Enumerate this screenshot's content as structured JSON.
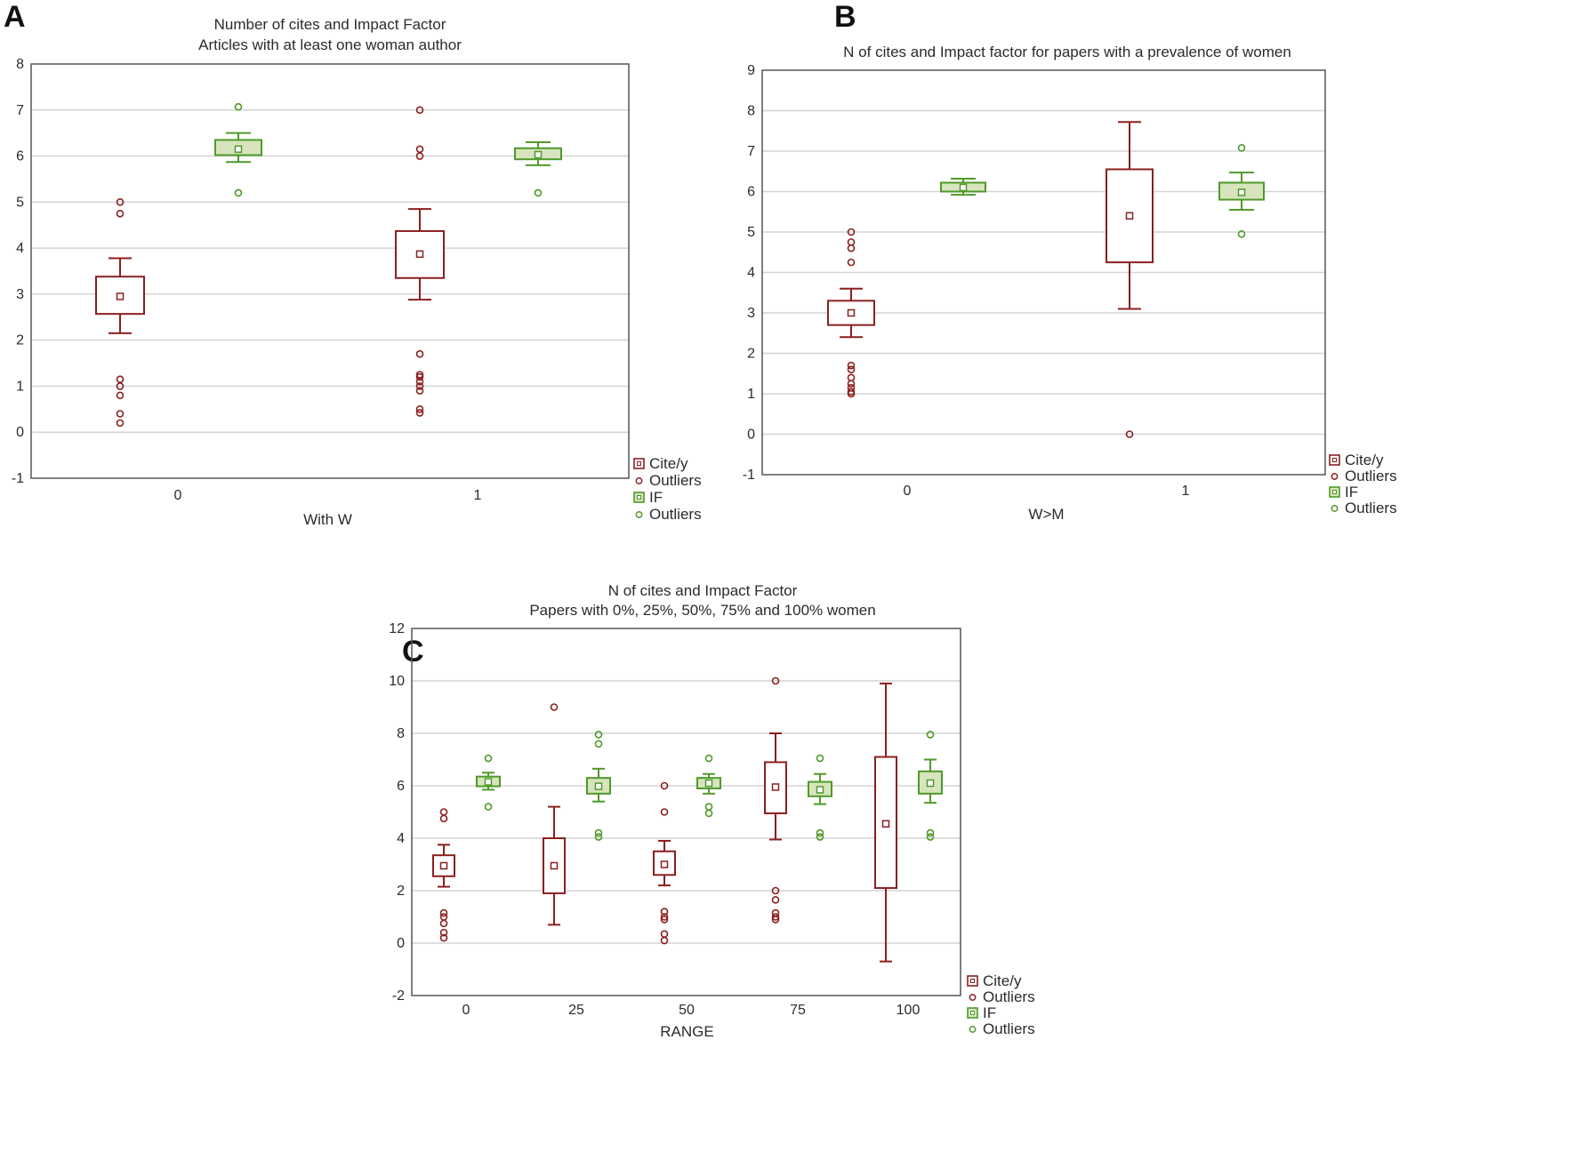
{
  "colors": {
    "cite": "#8b1f1f",
    "if_stroke": "#4f9a2a",
    "if_fill": "#d7e4bd",
    "grid": "#d4d4d4",
    "axis": "#555555"
  },
  "chart_data": [
    {
      "panel": "A",
      "type": "box",
      "title": "Number of cites and Impact Factor",
      "subtitle": "Articles with at least one woman author",
      "xlabel": "With W",
      "categories": [
        "0",
        "1"
      ],
      "ylim": [
        -1,
        8
      ],
      "yticks": [
        -1,
        0,
        1,
        2,
        3,
        4,
        5,
        6,
        7,
        8
      ],
      "grid": true,
      "legend_position": "right",
      "series": [
        {
          "name": "Cite/y",
          "outlier_label": "Outliers",
          "boxes": [
            {
              "category": "0",
              "center": 2.95,
              "box": [
                2.57,
                3.38
              ],
              "whisker": [
                2.15,
                3.78
              ],
              "outliers": [
                5.0,
                4.75,
                1.15,
                1.0,
                0.8,
                0.4,
                0.2
              ]
            },
            {
              "category": "1",
              "center": 3.87,
              "box": [
                3.35,
                4.37
              ],
              "whisker": [
                2.88,
                4.85
              ],
              "outliers": [
                7.0,
                6.15,
                6.0,
                1.7,
                1.25,
                1.2,
                1.1,
                1.0,
                0.9,
                0.5,
                0.42
              ]
            }
          ]
        },
        {
          "name": "IF",
          "outlier_label": "Outliers",
          "boxes": [
            {
              "category": "0",
              "center": 6.15,
              "box": [
                6.02,
                6.35
              ],
              "whisker": [
                5.87,
                6.5
              ],
              "outliers": [
                7.07,
                5.2
              ]
            },
            {
              "category": "1",
              "center": 6.03,
              "box": [
                5.93,
                6.17
              ],
              "whisker": [
                5.8,
                6.3
              ],
              "outliers": [
                5.2
              ]
            }
          ]
        }
      ]
    },
    {
      "panel": "B",
      "type": "box",
      "title": "N of cites and Impact factor  for papers with a prevalence of women",
      "subtitle": "",
      "xlabel": "W>M",
      "categories": [
        "0",
        "1"
      ],
      "ylim": [
        -1,
        9
      ],
      "yticks": [
        -1,
        0,
        1,
        2,
        3,
        4,
        5,
        6,
        7,
        8,
        9
      ],
      "grid": true,
      "legend_position": "right",
      "series": [
        {
          "name": "Cite/y",
          "outlier_label": "Outliers",
          "boxes": [
            {
              "category": "0",
              "center": 3.0,
              "box": [
                2.7,
                3.3
              ],
              "whisker": [
                2.4,
                3.6
              ],
              "outliers": [
                5.0,
                4.75,
                4.6,
                4.25,
                1.7,
                1.6,
                1.4,
                1.25,
                1.15,
                1.05,
                1.0
              ]
            },
            {
              "category": "1",
              "center": 5.4,
              "box": [
                4.25,
                6.55
              ],
              "whisker": [
                3.1,
                7.72
              ],
              "outliers": [
                0.0
              ]
            }
          ]
        },
        {
          "name": "IF",
          "outlier_label": "Outliers",
          "boxes": [
            {
              "category": "0",
              "center": 6.1,
              "box": [
                6.0,
                6.22
              ],
              "whisker": [
                5.92,
                6.32
              ],
              "outliers": []
            },
            {
              "category": "1",
              "center": 5.98,
              "box": [
                5.8,
                6.22
              ],
              "whisker": [
                5.55,
                6.47
              ],
              "outliers": [
                7.08,
                4.95
              ]
            }
          ]
        }
      ]
    },
    {
      "panel": "C",
      "type": "box",
      "title": "N of cites and Impact Factor",
      "subtitle": "Papers with 0%, 25%, 50%, 75% and 100% women",
      "xlabel": "RANGE",
      "categories": [
        "0",
        "25",
        "50",
        "75",
        "100"
      ],
      "ylim": [
        -2,
        12
      ],
      "yticks": [
        -2,
        0,
        2,
        4,
        6,
        8,
        10,
        12
      ],
      "grid": true,
      "legend_position": "right",
      "series": [
        {
          "name": "Cite/y",
          "outlier_label": "Outliers",
          "boxes": [
            {
              "category": "0",
              "center": 2.95,
              "box": [
                2.55,
                3.35
              ],
              "whisker": [
                2.15,
                3.75
              ],
              "outliers": [
                5.0,
                4.75,
                1.15,
                1.0,
                0.75,
                0.4,
                0.2
              ]
            },
            {
              "category": "25",
              "center": 2.95,
              "box": [
                1.9,
                4.0
              ],
              "whisker": [
                0.7,
                5.2
              ],
              "outliers": [
                9.0
              ]
            },
            {
              "category": "50",
              "center": 3.0,
              "box": [
                2.6,
                3.5
              ],
              "whisker": [
                2.2,
                3.9
              ],
              "outliers": [
                6.0,
                5.0,
                1.2,
                1.0,
                0.9,
                0.35,
                0.1
              ]
            },
            {
              "category": "75",
              "center": 5.95,
              "box": [
                4.95,
                6.9
              ],
              "whisker": [
                3.95,
                8.0
              ],
              "outliers": [
                10.0,
                2.0,
                1.65,
                1.15,
                1.0,
                0.9
              ]
            },
            {
              "category": "100",
              "center": 4.55,
              "box": [
                2.1,
                7.1
              ],
              "whisker": [
                -0.7,
                9.9
              ],
              "outliers": []
            }
          ]
        },
        {
          "name": "IF",
          "outlier_label": "Outliers",
          "boxes": [
            {
              "category": "0",
              "center": 6.15,
              "box": [
                5.98,
                6.35
              ],
              "whisker": [
                5.85,
                6.5
              ],
              "outliers": [
                7.05,
                5.2
              ]
            },
            {
              "category": "25",
              "center": 5.98,
              "box": [
                5.7,
                6.3
              ],
              "whisker": [
                5.4,
                6.65
              ],
              "outliers": [
                7.95,
                7.6,
                4.2,
                4.05
              ]
            },
            {
              "category": "50",
              "center": 6.1,
              "box": [
                5.9,
                6.3
              ],
              "whisker": [
                5.7,
                6.45
              ],
              "outliers": [
                7.05,
                5.2,
                4.95
              ]
            },
            {
              "category": "75",
              "center": 5.85,
              "box": [
                5.6,
                6.15
              ],
              "whisker": [
                5.3,
                6.45
              ],
              "outliers": [
                7.05,
                4.2,
                4.05
              ]
            },
            {
              "category": "100",
              "center": 6.1,
              "box": [
                5.7,
                6.55
              ],
              "whisker": [
                5.35,
                7.0
              ],
              "outliers": [
                7.95,
                4.2,
                4.05
              ]
            }
          ]
        }
      ]
    }
  ]
}
